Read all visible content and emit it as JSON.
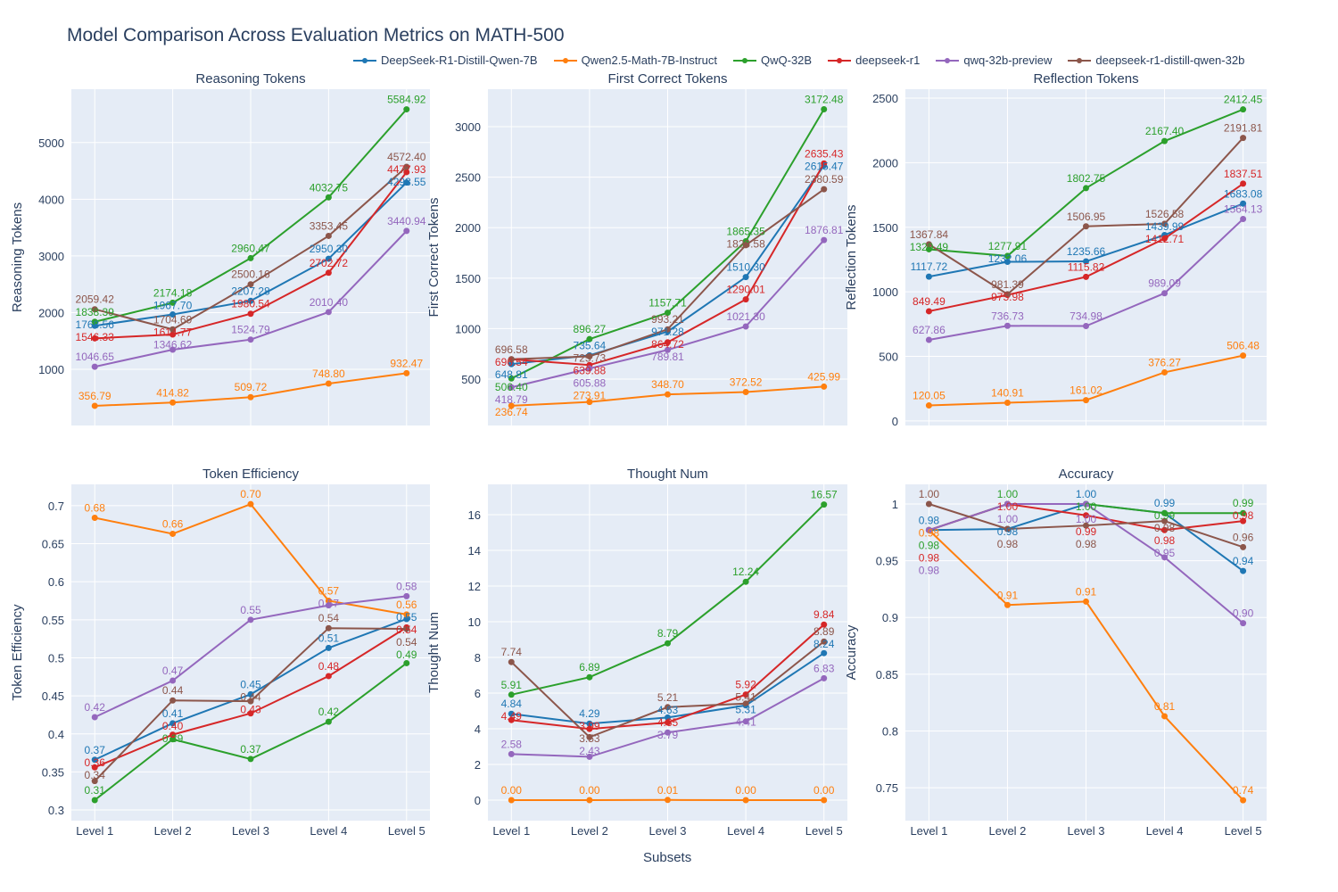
{
  "title": "Model Comparison Across Evaluation Metrics on MATH-500",
  "xlabel": "Subsets",
  "colors": {
    "DeepSeek-R1-Distill-Qwen-7B": "#1f77b4",
    "Qwen2.5-Math-7B-Instruct": "#ff7f0e",
    "QwQ-32B": "#2ca02c",
    "deepseek-r1": "#d62728",
    "qwq-32b-preview": "#9467bd",
    "deepseek-r1-distill-qwen-32b": "#8c564b"
  },
  "legend": [
    "DeepSeek-R1-Distill-Qwen-7B",
    "Qwen2.5-Math-7B-Instruct",
    "QwQ-32B",
    "deepseek-r1",
    "qwq-32b-preview",
    "deepseek-r1-distill-qwen-32b"
  ],
  "chart_data": [
    {
      "type": "line",
      "title": "Reasoning Tokens",
      "ylabel": "Reasoning Tokens",
      "categories": [
        "Level 1",
        "Level 2",
        "Level 3",
        "Level 4",
        "Level 5"
      ],
      "ylim": [
        10,
        5940
      ],
      "yticks": [
        1000,
        2000,
        3000,
        4000,
        5000
      ],
      "grid": true,
      "series": [
        {
          "name": "DeepSeek-R1-Distill-Qwen-7B",
          "values": [
            1768.56,
            1967.7,
            2207.28,
            2950.3,
            4293.55
          ]
        },
        {
          "name": "Qwen2.5-Math-7B-Instruct",
          "values": [
            356.79,
            414.82,
            509.72,
            748.8,
            932.47
          ]
        },
        {
          "name": "QwQ-32B",
          "values": [
            1838.39,
            2174.18,
            2960.47,
            4032.75,
            5584.92
          ]
        },
        {
          "name": "deepseek-r1",
          "values": [
            1546.33,
            1614.77,
            1980.54,
            2702.72,
            4477.93
          ]
        },
        {
          "name": "qwq-32b-preview",
          "values": [
            1046.65,
            1346.62,
            1524.79,
            2010.4,
            3440.94
          ]
        },
        {
          "name": "deepseek-r1-distill-qwen-32b",
          "values": [
            2059.42,
            1704.69,
            2500.16,
            3353.45,
            4572.4
          ]
        }
      ]
    },
    {
      "type": "line",
      "title": "First Correct Tokens",
      "ylabel": "First Correct Tokens",
      "categories": [
        "Level 1",
        "Level 2",
        "Level 3",
        "Level 4",
        "Level 5"
      ],
      "ylim": [
        41,
        3371
      ],
      "yticks": [
        500,
        1000,
        1500,
        2000,
        2500,
        3000
      ],
      "grid": true,
      "series": [
        {
          "name": "DeepSeek-R1-Distill-Qwen-7B",
          "values": [
            648.81,
            735.64,
            971.28,
            1510.3,
            2615.47
          ]
        },
        {
          "name": "Qwen2.5-Math-7B-Instruct",
          "values": [
            236.74,
            273.91,
            348.7,
            372.52,
            425.99
          ]
        },
        {
          "name": "QwQ-32B",
          "values": [
            506.4,
            896.27,
            1157.71,
            1865.35,
            3172.48
          ]
        },
        {
          "name": "deepseek-r1",
          "values": [
            696.54,
            639.88,
            864.72,
            1290.01,
            2635.43
          ]
        },
        {
          "name": "qwq-32b-preview",
          "values": [
            418.79,
            605.88,
            789.81,
            1021.3,
            1876.81
          ]
        },
        {
          "name": "deepseek-r1-distill-qwen-32b",
          "values": [
            696.58,
            725.73,
            993.21,
            1826.58,
            2380.59
          ]
        }
      ]
    },
    {
      "type": "line",
      "title": "Reflection Tokens",
      "ylabel": "Reflection Tokens",
      "categories": [
        "Level 1",
        "Level 2",
        "Level 3",
        "Level 4",
        "Level 5"
      ],
      "ylim": [
        -35,
        2569
      ],
      "yticks": [
        0,
        500,
        1000,
        1500,
        2000,
        2500
      ],
      "grid": true,
      "series": [
        {
          "name": "DeepSeek-R1-Distill-Qwen-7B",
          "values": [
            1117.72,
            1232.06,
            1235.66,
            1439.99,
            1683.08
          ]
        },
        {
          "name": "Qwen2.5-Math-7B-Instruct",
          "values": [
            120.05,
            140.91,
            161.02,
            376.27,
            506.48
          ]
        },
        {
          "name": "QwQ-32B",
          "values": [
            1329.49,
            1277.91,
            1802.75,
            2167.4,
            2412.45
          ]
        },
        {
          "name": "deepseek-r1",
          "values": [
            849.49,
            975.98,
            1115.82,
            1412.71,
            1837.51
          ]
        },
        {
          "name": "qwq-32b-preview",
          "values": [
            627.86,
            736.73,
            734.98,
            989.09,
            1564.13
          ]
        },
        {
          "name": "deepseek-r1-distill-qwen-32b",
          "values": [
            1367.84,
            981.39,
            1506.95,
            1526.58,
            2191.81
          ]
        }
      ]
    },
    {
      "type": "line",
      "title": "Token Efficiency",
      "ylabel": "Token Efficiency",
      "categories": [
        "Level 1",
        "Level 2",
        "Level 3",
        "Level 4",
        "Level 5"
      ],
      "ylim": [
        0.286,
        0.728
      ],
      "yticks": [
        0.3,
        0.35,
        0.4,
        0.45,
        0.5,
        0.55,
        0.6,
        0.65,
        0.7
      ],
      "grid": true,
      "series": [
        {
          "name": "DeepSeek-R1-Distill-Qwen-7B",
          "values": [
            0.366,
            0.414,
            0.452,
            0.513,
            0.551
          ]
        },
        {
          "name": "Qwen2.5-Math-7B-Instruct",
          "values": [
            0.684,
            0.663,
            0.702,
            0.575,
            0.557
          ]
        },
        {
          "name": "QwQ-32B",
          "values": [
            0.313,
            0.393,
            0.367,
            0.416,
            0.493
          ]
        },
        {
          "name": "deepseek-r1",
          "values": [
            0.356,
            0.399,
            0.427,
            0.476,
            0.54
          ]
        },
        {
          "name": "qwq-32b-preview",
          "values": [
            0.422,
            0.47,
            0.55,
            0.569,
            0.581
          ]
        },
        {
          "name": "deepseek-r1-distill-qwen-32b",
          "values": [
            0.338,
            0.444,
            0.443,
            0.539,
            0.538
          ]
        }
      ]
    },
    {
      "type": "line",
      "title": "Thought Num",
      "ylabel": "Thought Num",
      "categories": [
        "Level 1",
        "Level 2",
        "Level 3",
        "Level 4",
        "Level 5"
      ],
      "ylim": [
        -1.15,
        17.7
      ],
      "yticks": [
        0,
        2,
        4,
        6,
        8,
        10,
        12,
        14,
        16
      ],
      "grid": true,
      "series": [
        {
          "name": "DeepSeek-R1-Distill-Qwen-7B",
          "values": [
            4.84,
            4.29,
            4.63,
            5.31,
            8.24
          ]
        },
        {
          "name": "Qwen2.5-Math-7B-Instruct",
          "values": [
            0.0,
            0.0,
            0.01,
            0.0,
            0.0
          ]
        },
        {
          "name": "QwQ-32B",
          "values": [
            5.91,
            6.89,
            8.79,
            12.24,
            16.57
          ]
        },
        {
          "name": "deepseek-r1",
          "values": [
            4.49,
            3.99,
            4.35,
            5.92,
            9.84
          ]
        },
        {
          "name": "qwq-32b-preview",
          "values": [
            2.58,
            2.43,
            3.79,
            4.41,
            6.83
          ]
        },
        {
          "name": "deepseek-r1-distill-qwen-32b",
          "values": [
            7.74,
            3.53,
            5.21,
            5.41,
            8.89
          ]
        }
      ]
    },
    {
      "type": "line",
      "title": "Accuracy",
      "ylabel": "Accuracy",
      "categories": [
        "Level 1",
        "Level 2",
        "Level 3",
        "Level 4",
        "Level 5"
      ],
      "ylim": [
        0.721,
        1.0173
      ],
      "yticks": [
        0.75,
        0.8,
        0.85,
        0.9,
        0.95,
        1
      ],
      "grid": true,
      "series": [
        {
          "name": "DeepSeek-R1-Distill-Qwen-7B",
          "values": [
            0.977,
            0.978,
            1.0,
            0.992,
            0.941
          ]
        },
        {
          "name": "Qwen2.5-Math-7B-Instruct",
          "values": [
            0.977,
            0.911,
            0.914,
            0.813,
            0.739
          ]
        },
        {
          "name": "QwQ-32B",
          "values": [
            0.977,
            1.0,
            1.0,
            0.992,
            0.992
          ]
        },
        {
          "name": "deepseek-r1",
          "values": [
            0.977,
            1.0,
            0.99,
            0.977,
            0.985
          ]
        },
        {
          "name": "qwq-32b-preview",
          "values": [
            0.977,
            1.0,
            1.0,
            0.953,
            0.895
          ]
        },
        {
          "name": "deepseek-r1-distill-qwen-32b",
          "values": [
            1.0,
            0.978,
            0.981,
            0.985,
            0.962
          ]
        }
      ]
    }
  ]
}
